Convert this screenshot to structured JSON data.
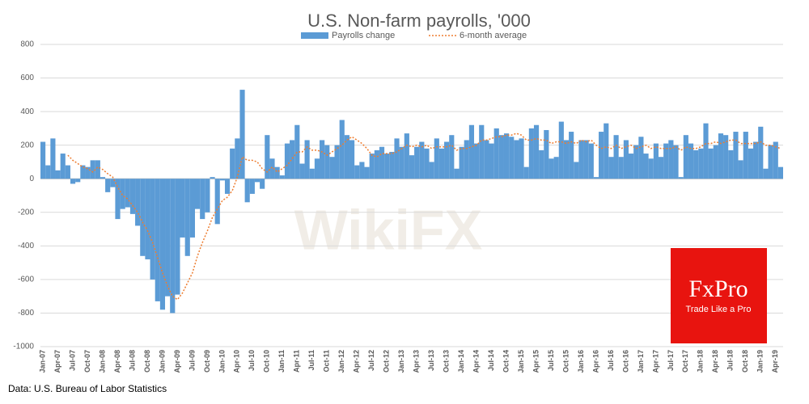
{
  "chart_data": {
    "type": "bar",
    "title": "U.S. Non-farm payrolls, '000",
    "source": "Data: U.S. Bureau of Labor Statistics",
    "watermark": "WikiFX",
    "logo": {
      "name": "FxPro",
      "tagline": "Trade Like a Pro"
    },
    "categories": [
      "Jan-07",
      null,
      null,
      "Apr-07",
      null,
      null,
      "Jul-07",
      null,
      null,
      "Oct-07",
      null,
      null,
      "Jan-08",
      null,
      null,
      "Apr-08",
      null,
      null,
      "Jul-08",
      null,
      null,
      "Oct-08",
      null,
      null,
      "Jan-09",
      null,
      null,
      "Apr-09",
      null,
      null,
      "Jul-09",
      null,
      null,
      "Oct-09",
      null,
      null,
      "Jan-10",
      null,
      null,
      "Apr-10",
      null,
      null,
      "Jul-10",
      null,
      null,
      "Oct-10",
      null,
      null,
      "Jan-11",
      null,
      null,
      "Apr-11",
      null,
      null,
      "Jul-11",
      null,
      null,
      "Oct-11",
      null,
      null,
      "Jan-12",
      null,
      null,
      "Apr-12",
      null,
      null,
      "Jul-12",
      null,
      null,
      "Oct-12",
      null,
      null,
      "Jan-13",
      null,
      null,
      "Apr-13",
      null,
      null,
      "Jul-13",
      null,
      null,
      "Oct-13",
      null,
      null,
      "Jan-14",
      null,
      null,
      "Apr-14",
      null,
      null,
      "Jul-14",
      null,
      null,
      "Oct-14",
      null,
      null,
      "Jan-15",
      null,
      null,
      "Apr-15",
      null,
      null,
      "Jul-15",
      null,
      null,
      "Oct-15",
      null,
      null,
      "Jan-16",
      null,
      null,
      "Apr-16",
      null,
      null,
      "Jul-16",
      null,
      null,
      "Oct-16",
      null,
      null,
      "Jan-17",
      null,
      null,
      "Apr-17",
      null,
      null,
      "Jul-17",
      null,
      null,
      "Oct-17",
      null,
      null,
      "Jan-18",
      null,
      null,
      "Apr-18",
      null,
      null,
      "Jul-18",
      null,
      null,
      "Oct-18",
      null,
      null,
      "Jan-19",
      null,
      null,
      "Apr-19",
      null
    ],
    "series": [
      {
        "name": "Payrolls change",
        "type": "bar",
        "color": "#5b9bd5",
        "values": [
          220,
          80,
          240,
          50,
          150,
          80,
          -30,
          -20,
          80,
          70,
          110,
          110,
          10,
          -80,
          -50,
          -240,
          -180,
          -170,
          -210,
          -280,
          -460,
          -480,
          -600,
          -730,
          -780,
          -700,
          -800,
          -690,
          -350,
          -460,
          -350,
          -180,
          -240,
          -200,
          10,
          -270,
          -10,
          -90,
          180,
          240,
          530,
          -140,
          -90,
          -20,
          -60,
          260,
          120,
          70,
          20,
          210,
          230,
          320,
          90,
          230,
          60,
          120,
          230,
          200,
          130,
          200,
          350,
          260,
          230,
          80,
          100,
          70,
          150,
          170,
          190,
          150,
          160,
          240,
          190,
          270,
          140,
          190,
          220,
          180,
          100,
          240,
          180,
          220,
          260,
          60,
          190,
          230,
          320,
          210,
          320,
          230,
          210,
          300,
          260,
          270,
          250,
          230,
          240,
          70,
          300,
          320,
          170,
          290,
          120,
          130,
          340,
          230,
          280,
          100,
          230,
          230,
          210,
          10,
          280,
          330,
          130,
          260,
          130,
          230,
          150,
          200,
          250,
          150,
          120,
          210,
          130,
          210,
          230,
          200,
          10,
          260,
          210,
          170,
          180,
          330,
          180,
          200,
          270,
          260,
          170,
          280,
          110,
          280,
          180,
          220,
          310,
          60,
          200,
          220,
          70
        ]
      },
      {
        "name": "6-month average",
        "type": "line",
        "color": "#ed7d31",
        "values": [
          null,
          null,
          null,
          null,
          null,
          140,
          110,
          90,
          70,
          60,
          40,
          70,
          55,
          30,
          10,
          -50,
          -100,
          -120,
          -160,
          -200,
          -260,
          -310,
          -380,
          -470,
          -560,
          -640,
          -700,
          -720,
          -680,
          -620,
          -560,
          -460,
          -380,
          -310,
          -230,
          -180,
          -130,
          -110,
          -70,
          10,
          130,
          110,
          110,
          100,
          60,
          40,
          70,
          40,
          60,
          80,
          120,
          160,
          160,
          190,
          170,
          170,
          160,
          140,
          160,
          180,
          200,
          230,
          250,
          230,
          210,
          180,
          140,
          130,
          150,
          150,
          150,
          160,
          180,
          200,
          190,
          200,
          190,
          200,
          180,
          190,
          190,
          190,
          200,
          170,
          180,
          180,
          190,
          200,
          230,
          230,
          240,
          250,
          250,
          260,
          260,
          270,
          260,
          230,
          230,
          240,
          230,
          230,
          210,
          220,
          220,
          210,
          220,
          210,
          230,
          220,
          230,
          200,
          180,
          190,
          180,
          200,
          180,
          190,
          200,
          180,
          190,
          200,
          180,
          190,
          180,
          180,
          180,
          190,
          170,
          190,
          180,
          180,
          190,
          210,
          210,
          220,
          210,
          220,
          230,
          230,
          210,
          210,
          210,
          210,
          220,
          200,
          200,
          190,
          180
        ]
      }
    ],
    "ylim": [
      -1000,
      800
    ],
    "yticks": [
      -1000,
      -800,
      -600,
      -400,
      -200,
      0,
      200,
      400,
      600,
      800
    ],
    "grid": true
  }
}
